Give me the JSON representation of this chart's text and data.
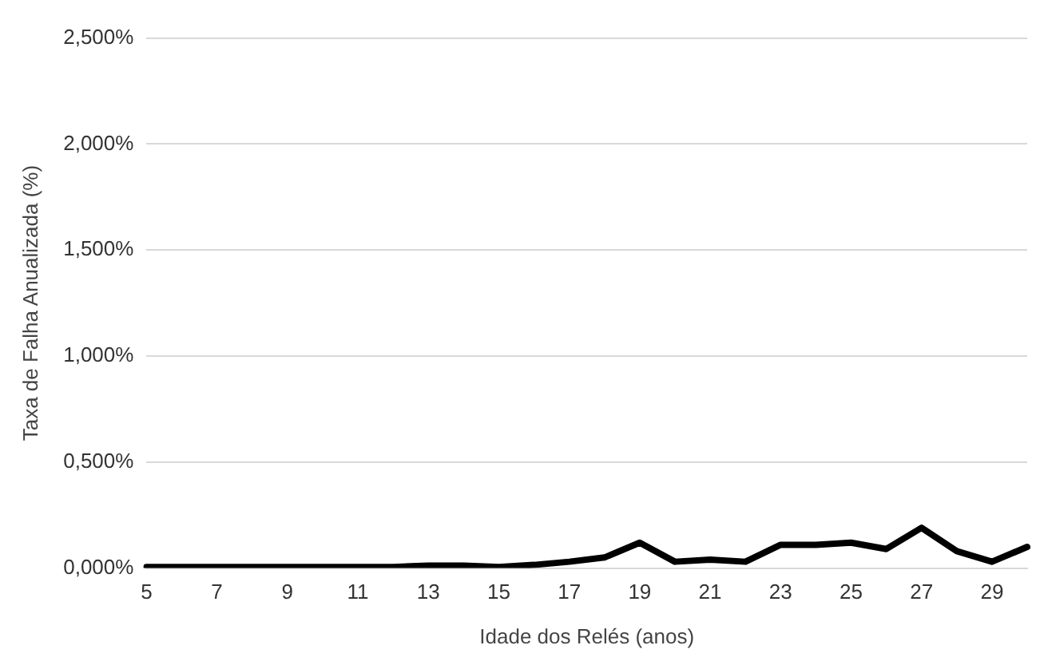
{
  "chart_data": {
    "type": "line",
    "xlabel": "Idade dos Relés (anos)",
    "ylabel": "Taxa de Falha Anualizada (%)",
    "categories": [
      "5",
      null,
      "7",
      null,
      "9",
      null,
      "11",
      null,
      "13",
      null,
      "15",
      null,
      "17",
      null,
      "19",
      null,
      "21",
      null,
      "23",
      null,
      "25",
      null,
      "27",
      null,
      "29",
      null
    ],
    "series": [
      {
        "color": "#000000",
        "values": [
          0.005,
          0.005,
          0.005,
          0.005,
          0.005,
          0.005,
          0.005,
          0.005,
          0.012,
          0.012,
          0.005,
          0.015,
          0.03,
          0.05,
          0.12,
          0.03,
          0.04,
          0.03,
          0.11,
          0.11,
          0.12,
          0.09,
          0.19,
          0.08,
          0.03,
          0.1
        ]
      }
    ],
    "ylim": [
      0,
      2.5
    ],
    "yticks": [
      {
        "value": 0,
        "label": "0,000%"
      },
      {
        "value": 0.5,
        "label": "0,500%"
      },
      {
        "value": 1,
        "label": "1,000%"
      },
      {
        "value": 1.5,
        "label": "1,500%"
      },
      {
        "value": 2,
        "label": "2,000%"
      },
      {
        "value": 2.5,
        "label": "2,500%"
      }
    ],
    "grid": "y",
    "legend": false,
    "marker": "none",
    "line_style": "solid"
  }
}
